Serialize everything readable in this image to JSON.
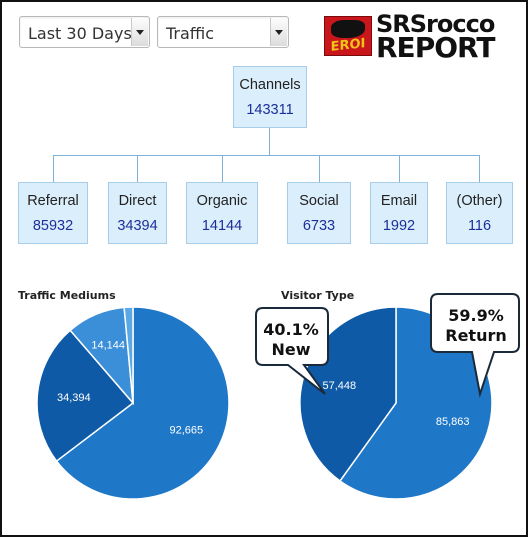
{
  "filters": {
    "range": "Last 30 Days",
    "metric": "Traffic"
  },
  "logo": {
    "badge": "EROI",
    "line1": "SRSrocco",
    "line2": "REPORT"
  },
  "tree": {
    "root": {
      "label": "Channels",
      "value": "143311"
    },
    "leaves": [
      {
        "label": "Referral",
        "value": "85932"
      },
      {
        "label": "Direct",
        "value": "34394"
      },
      {
        "label": "Organic",
        "value": "14144"
      },
      {
        "label": "Social",
        "value": "6733"
      },
      {
        "label": "Email",
        "value": "1992"
      },
      {
        "label": "(Other)",
        "value": "116"
      }
    ]
  },
  "chart_data": [
    {
      "type": "pie",
      "title": "Traffic Mediums",
      "categories": [
        "",
        "",
        "",
        ""
      ],
      "values": [
        92665,
        34394,
        14144,
        2108
      ],
      "value_labels": [
        "92,665",
        "34,394",
        "14,144",
        ""
      ],
      "colors": [
        "#1f77c8",
        "#0e5aa6",
        "#3a8fd8",
        "#5aa8e6"
      ]
    },
    {
      "type": "pie",
      "title": "Visitor Type",
      "categories": [
        "Return",
        "New"
      ],
      "values": [
        85863,
        57448
      ],
      "value_labels": [
        "85,863",
        "57,448"
      ],
      "colors": [
        "#1f77c8",
        "#0e5aa6"
      ],
      "callouts": [
        {
          "percent": "40.1%",
          "label": "New"
        },
        {
          "percent": "59.9%",
          "label": "Return"
        }
      ]
    }
  ]
}
